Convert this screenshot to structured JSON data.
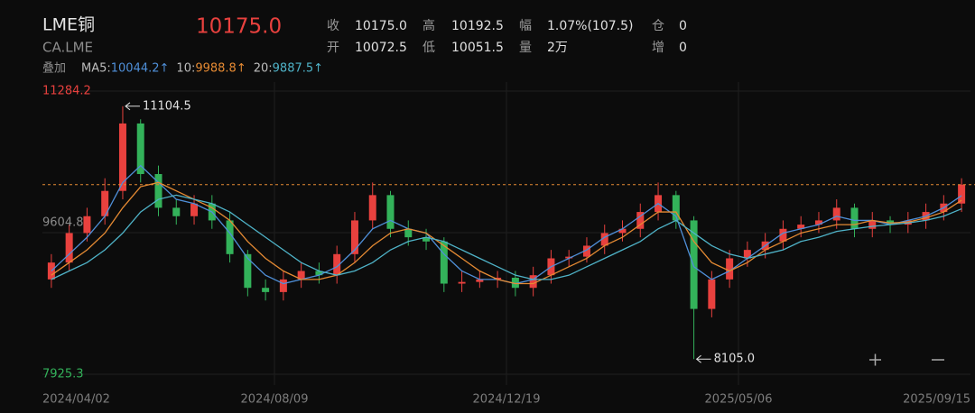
{
  "header": {
    "name": "LME铜",
    "code": "CA.LME",
    "price": "10175.0",
    "stats": [
      [
        [
          "收",
          "10175.0"
        ],
        [
          "高",
          "10192.5"
        ],
        [
          "幅",
          "1.07%(107.5)"
        ],
        [
          "仓",
          "0"
        ]
      ],
      [
        [
          "开",
          "10072.5"
        ],
        [
          "低",
          "10051.5"
        ],
        [
          "量",
          "2万"
        ],
        [
          "增",
          "0"
        ]
      ]
    ],
    "overlay": "叠加",
    "ma_legend": [
      {
        "label": "MA5:",
        "value": "10044.2↑",
        "color": "#4f8fd8"
      },
      {
        "label": "10:",
        "value": "9988.8↑",
        "color": "#e58a33"
      },
      {
        "label": "20:",
        "value": "9887.5↑",
        "color": "#4fb3c8"
      }
    ]
  },
  "chart_data": {
    "type": "candlestick",
    "up_color": "#e8413e",
    "down_color": "#33b25a",
    "candles": {
      "open": [
        9050,
        9250,
        9600,
        9800,
        10100,
        10900,
        10300,
        9900,
        9800,
        9950,
        9750,
        9350,
        8950,
        8900,
        9050,
        9150,
        9100,
        9350,
        9750,
        10050,
        9650,
        9550,
        9500,
        9000,
        9020,
        9050,
        9070,
        8950,
        9100,
        9300,
        9320,
        9450,
        9600,
        9650,
        9850,
        10050,
        9750,
        8700,
        9050,
        9300,
        9400,
        9500,
        9650,
        9700,
        9750,
        9900,
        9650,
        9750,
        9700,
        9750,
        9850,
        9950
      ],
      "high": [
        9350,
        9700,
        9900,
        10250,
        11104.5,
        10950,
        10400,
        10000,
        10050,
        10050,
        9850,
        9400,
        9050,
        9150,
        9250,
        9250,
        9450,
        9850,
        10200,
        10100,
        9750,
        9650,
        9550,
        9150,
        9150,
        9150,
        9150,
        9200,
        9400,
        9400,
        9550,
        9700,
        9750,
        9950,
        10200,
        10100,
        9800,
        9150,
        9400,
        9500,
        9600,
        9750,
        9800,
        9850,
        10000,
        9950,
        9850,
        9800,
        9850,
        9950,
        10050,
        10250
      ],
      "low": [
        8950,
        9150,
        9500,
        9700,
        10000,
        10200,
        9800,
        9700,
        9700,
        9650,
        9250,
        8850,
        8800,
        8800,
        8950,
        9000,
        9000,
        9250,
        9650,
        9550,
        9450,
        9400,
        8900,
        8900,
        8950,
        8950,
        8850,
        8850,
        9000,
        9200,
        9250,
        9350,
        9500,
        9550,
        9750,
        9650,
        8105,
        8600,
        8950,
        9200,
        9300,
        9400,
        9550,
        9600,
        9650,
        9550,
        9550,
        9600,
        9600,
        9650,
        9750,
        9850
      ],
      "close": [
        9250,
        9600,
        9800,
        10100,
        10900,
        10300,
        9900,
        9800,
        9950,
        9750,
        9350,
        8950,
        8900,
        9050,
        9150,
        9100,
        9350,
        9750,
        10050,
        9650,
        9550,
        9500,
        9000,
        9020,
        9050,
        9070,
        8950,
        9100,
        9300,
        9320,
        9450,
        9600,
        9650,
        9850,
        10050,
        9750,
        8700,
        9050,
        9300,
        9400,
        9500,
        9650,
        9700,
        9750,
        9900,
        9650,
        9750,
        9700,
        9750,
        9850,
        9950,
        10175
      ]
    },
    "ma_lines": [
      {
        "color": "#4f8fd8",
        "values": [
          9150,
          9350,
          9550,
          9800,
          10200,
          10400,
          10200,
          10000,
          9950,
          9850,
          9600,
          9300,
          9100,
          9000,
          9050,
          9100,
          9200,
          9400,
          9650,
          9750,
          9650,
          9600,
          9350,
          9150,
          9050,
          9050,
          9000,
          9050,
          9200,
          9300,
          9400,
          9550,
          9650,
          9800,
          9950,
          9800,
          9200,
          9050,
          9150,
          9300,
          9450,
          9600,
          9650,
          9700,
          9800,
          9750,
          9750,
          9700,
          9750,
          9800,
          9900,
          10044.2
        ]
      },
      {
        "color": "#e58a33",
        "values": [
          9100,
          9250,
          9400,
          9600,
          9900,
          10150,
          10200,
          10100,
          10000,
          9900,
          9750,
          9500,
          9300,
          9150,
          9050,
          9050,
          9100,
          9250,
          9450,
          9600,
          9650,
          9600,
          9450,
          9300,
          9150,
          9050,
          9000,
          9000,
          9100,
          9200,
          9300,
          9450,
          9550,
          9700,
          9850,
          9850,
          9500,
          9250,
          9150,
          9250,
          9400,
          9500,
          9600,
          9650,
          9700,
          9700,
          9750,
          9720,
          9730,
          9780,
          9850,
          9988.8
        ]
      },
      {
        "color": "#4fb3c8",
        "values": [
          9050,
          9150,
          9250,
          9400,
          9600,
          9850,
          10000,
          10050,
          10000,
          9950,
          9850,
          9700,
          9550,
          9400,
          9250,
          9150,
          9100,
          9150,
          9250,
          9400,
          9500,
          9550,
          9500,
          9400,
          9300,
          9200,
          9100,
          9050,
          9050,
          9100,
          9200,
          9300,
          9400,
          9500,
          9650,
          9750,
          9600,
          9450,
          9350,
          9300,
          9350,
          9400,
          9500,
          9550,
          9620,
          9650,
          9680,
          9700,
          9720,
          9750,
          9800,
          9887.5
        ]
      }
    ],
    "high_label": "11104.5",
    "low_label": "8105.0",
    "ylim": [
      7925.3,
      11284.2
    ],
    "yticks": [
      7925.3,
      9604.8,
      11284.2
    ],
    "xticks": [
      {
        "value": 0,
        "label": "2024/04/02"
      },
      {
        "value": 13,
        "label": "2024/08/09"
      },
      {
        "value": 26,
        "label": "2024/12/19"
      },
      {
        "value": 39,
        "label": "2025/05/06"
      },
      {
        "value": 52,
        "label": "2025/09/15"
      }
    ],
    "grid": true
  }
}
